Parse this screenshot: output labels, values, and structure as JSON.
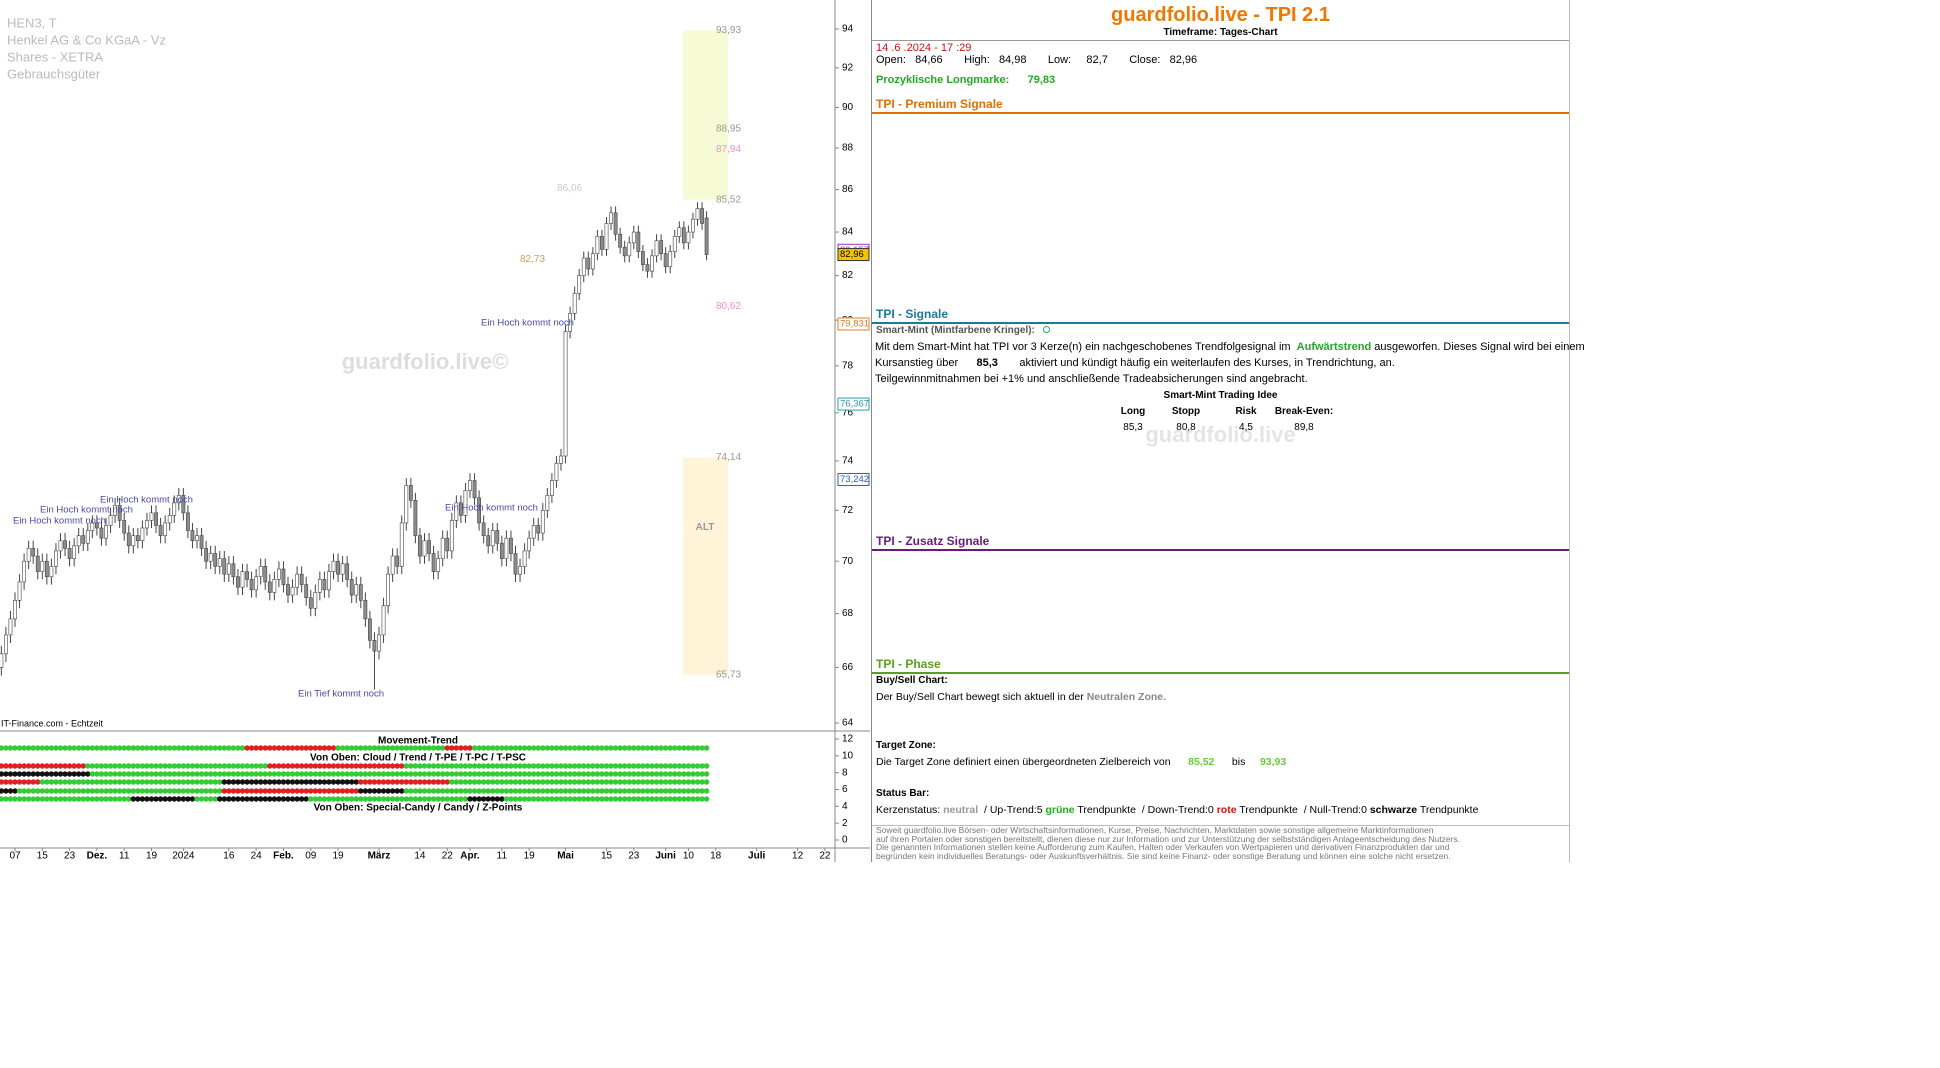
{
  "chart_data": [
    {
      "type": "candlestick",
      "title_lines": [
        "HEN3, T",
        "Henkel AG & Co KGaA - Vz",
        "Shares - XETRA",
        "Gebrauchsgüter"
      ],
      "watermark": "guardfolio.live©",
      "source": "IT-Finance.com - Echtzeit",
      "annotations": [
        "Ein Hoch kommt noch",
        "Ein Hoch kommt noch",
        "Ein Hoch kommt noch",
        "Ein Hoch kommt noch",
        "Ein Hoch kommt noch",
        "Ein Tief kommt noch"
      ],
      "zone_label": "ALT",
      "open": [
        65.6,
        66.0,
        66.5,
        67.2,
        67.8,
        68.5,
        69.2,
        70.0,
        70.5,
        70.2,
        69.6,
        70.0,
        69.4,
        69.8,
        70.4,
        70.8,
        70.5,
        70.1,
        70.6,
        71.0,
        70.7,
        71.2,
        71.5,
        71.3,
        70.9,
        71.4,
        71.8,
        72.2,
        71.6,
        71.1,
        70.6,
        71.0,
        70.8,
        71.3,
        71.6,
        71.9,
        71.4,
        71.0,
        71.5,
        71.8,
        72.3,
        72.6,
        71.9,
        71.2,
        70.8,
        71.0,
        70.5,
        70.0,
        70.3,
        69.8,
        70.1,
        69.5,
        69.9,
        69.4,
        69.0,
        69.6,
        69.3,
        68.9,
        69.4,
        69.8,
        69.2,
        68.8,
        69.3,
        69.7,
        69.1,
        68.7,
        69.0,
        69.5,
        69.1,
        68.6,
        68.2,
        68.8,
        69.3,
        68.9,
        69.6,
        70.0,
        69.5,
        69.9,
        69.3,
        68.7,
        69.1,
        68.5,
        67.8,
        67.0,
        66.6,
        67.2,
        68.3,
        69.5,
        70.2,
        69.8,
        71.5,
        73.0,
        72.4,
        71.0,
        70.2,
        70.8,
        70.3,
        69.6,
        70.1,
        70.9,
        70.4,
        71.6,
        72.3,
        71.8,
        72.8,
        73.2,
        72.5,
        71.5,
        71.0,
        70.6,
        71.2,
        70.7,
        70.1,
        70.9,
        70.3,
        69.5,
        69.8,
        70.4,
        70.9,
        71.4,
        71.1,
        72.0,
        72.6,
        73.2,
        73.9,
        74.2,
        79.5,
        80.3,
        81.2,
        82.0,
        82.8,
        82.3,
        83.0,
        83.8,
        83.2,
        84.4,
        84.9,
        83.9,
        83.3,
        82.9,
        83.5,
        84.0,
        83.1,
        82.5,
        82.2,
        82.9,
        83.6,
        83.0,
        82.4,
        83.1,
        83.8,
        84.2,
        83.5,
        84.0,
        84.6,
        85.1,
        84.66
      ],
      "high": [
        66.3,
        66.8,
        67.5,
        68.1,
        68.8,
        69.5,
        70.3,
        70.8,
        70.8,
        70.5,
        70.3,
        70.3,
        70.1,
        70.7,
        71.1,
        71.1,
        70.8,
        70.9,
        71.3,
        71.3,
        71.5,
        71.8,
        71.8,
        71.6,
        71.7,
        72.1,
        72.5,
        72.5,
        71.9,
        71.4,
        71.3,
        71.3,
        71.6,
        71.9,
        72.2,
        72.2,
        71.7,
        71.8,
        72.1,
        72.6,
        72.9,
        72.9,
        72.2,
        71.5,
        71.3,
        71.3,
        70.8,
        70.6,
        70.6,
        70.4,
        70.4,
        70.2,
        70.2,
        69.7,
        69.9,
        69.9,
        69.6,
        69.7,
        70.1,
        70.1,
        69.5,
        69.6,
        70.0,
        70.0,
        69.4,
        69.3,
        69.8,
        69.8,
        69.4,
        68.9,
        69.1,
        69.6,
        69.6,
        69.9,
        70.3,
        70.3,
        70.2,
        70.2,
        69.6,
        69.4,
        69.4,
        68.8,
        68.1,
        67.3,
        67.5,
        68.6,
        69.8,
        70.5,
        70.5,
        71.8,
        73.3,
        73.3,
        72.7,
        71.3,
        71.1,
        71.1,
        70.6,
        70.4,
        71.2,
        71.2,
        71.9,
        72.6,
        72.6,
        73.1,
        73.5,
        73.5,
        72.8,
        71.8,
        71.3,
        71.5,
        71.5,
        71.0,
        71.2,
        71.2,
        70.6,
        70.1,
        70.7,
        71.2,
        71.7,
        71.7,
        72.3,
        72.9,
        73.5,
        74.2,
        74.5,
        79.8,
        80.6,
        81.5,
        82.3,
        83.1,
        83.1,
        83.3,
        84.1,
        84.1,
        84.7,
        85.2,
        85.2,
        84.2,
        83.6,
        83.8,
        84.3,
        84.3,
        83.4,
        82.8,
        83.2,
        83.9,
        83.9,
        83.3,
        83.4,
        84.1,
        84.5,
        84.5,
        84.3,
        84.9,
        85.4,
        85.4,
        84.98
      ],
      "low": [
        65.3,
        65.7,
        66.2,
        66.9,
        67.5,
        68.2,
        68.9,
        69.7,
        69.9,
        69.3,
        69.3,
        69.1,
        69.1,
        69.5,
        70.1,
        70.2,
        69.8,
        69.8,
        70.3,
        70.4,
        70.4,
        70.9,
        71.0,
        70.6,
        70.6,
        71.1,
        71.5,
        71.3,
        70.8,
        70.3,
        70.3,
        70.5,
        70.5,
        71.0,
        71.3,
        71.1,
        70.7,
        70.7,
        71.2,
        71.5,
        72.0,
        71.6,
        70.9,
        70.5,
        70.5,
        70.2,
        69.7,
        69.7,
        69.5,
        69.5,
        69.2,
        69.2,
        69.1,
        68.7,
        68.7,
        69.0,
        68.6,
        68.6,
        69.1,
        68.9,
        68.5,
        68.5,
        69.0,
        68.8,
        68.4,
        68.4,
        68.7,
        68.8,
        68.3,
        67.9,
        67.9,
        68.5,
        68.6,
        68.6,
        69.3,
        69.2,
        69.2,
        69.0,
        68.4,
        68.4,
        68.2,
        67.5,
        66.7,
        65.2,
        66.3,
        66.9,
        68.0,
        69.2,
        69.5,
        69.5,
        71.2,
        72.1,
        70.7,
        69.9,
        69.9,
        70.0,
        69.3,
        69.3,
        69.8,
        70.1,
        70.1,
        71.3,
        71.5,
        71.5,
        72.5,
        72.2,
        71.2,
        70.7,
        70.3,
        70.3,
        70.4,
        69.8,
        69.8,
        70.0,
        69.2,
        69.2,
        69.5,
        70.1,
        70.6,
        70.8,
        70.8,
        71.7,
        72.3,
        72.9,
        73.6,
        73.9,
        79.2,
        80.0,
        80.9,
        81.7,
        82.0,
        82.0,
        82.7,
        82.9,
        82.9,
        84.1,
        83.6,
        83.0,
        82.6,
        82.6,
        83.2,
        82.8,
        82.2,
        81.9,
        81.9,
        82.6,
        82.7,
        82.1,
        82.1,
        82.8,
        83.5,
        83.2,
        83.2,
        83.7,
        84.3,
        84.1,
        82.7
      ],
      "close": [
        66.0,
        66.5,
        67.2,
        67.8,
        68.5,
        69.2,
        70.0,
        70.5,
        70.2,
        69.6,
        70.0,
        69.4,
        69.8,
        70.4,
        70.8,
        70.5,
        70.1,
        70.6,
        71.0,
        70.7,
        71.2,
        71.5,
        71.3,
        70.9,
        71.4,
        71.8,
        72.2,
        71.6,
        71.1,
        70.6,
        71.0,
        70.8,
        71.3,
        71.6,
        71.9,
        71.4,
        71.0,
        71.5,
        71.8,
        72.3,
        72.6,
        71.9,
        71.2,
        70.8,
        71.0,
        70.5,
        70.0,
        70.3,
        69.8,
        70.1,
        69.5,
        69.9,
        69.4,
        69.0,
        69.6,
        69.3,
        68.9,
        69.4,
        69.8,
        69.2,
        68.8,
        69.3,
        69.7,
        69.1,
        68.7,
        69.0,
        69.5,
        69.1,
        68.6,
        68.2,
        68.8,
        69.3,
        68.9,
        69.6,
        70.0,
        69.5,
        69.9,
        69.3,
        68.7,
        69.1,
        68.5,
        67.8,
        67.0,
        66.6,
        67.2,
        68.3,
        69.5,
        70.2,
        69.8,
        71.5,
        73.0,
        72.4,
        71.0,
        70.2,
        70.8,
        70.3,
        69.6,
        70.1,
        70.9,
        70.4,
        71.6,
        72.3,
        71.8,
        72.8,
        73.2,
        72.5,
        71.5,
        71.0,
        70.6,
        71.2,
        70.7,
        70.1,
        70.9,
        70.3,
        69.5,
        69.8,
        70.4,
        70.9,
        71.4,
        71.1,
        72.0,
        72.6,
        73.2,
        73.9,
        74.2,
        79.5,
        80.3,
        81.2,
        82.0,
        82.8,
        82.3,
        83.0,
        83.8,
        83.2,
        84.4,
        84.9,
        83.9,
        83.3,
        82.9,
        83.5,
        84.0,
        83.1,
        82.5,
        82.2,
        82.9,
        83.6,
        83.0,
        82.4,
        83.1,
        83.8,
        84.2,
        83.5,
        84.0,
        84.6,
        85.1,
        84.4,
        82.96
      ],
      "up_color": "#ffffff",
      "down_color": "#8c8c8c",
      "log_scale": true,
      "ylim": [
        64,
        94
      ],
      "yticks": [
        64,
        66,
        68,
        70,
        72,
        74,
        76,
        78,
        80,
        82,
        84,
        86,
        88,
        90,
        92,
        94
      ],
      "xticks": [
        {
          "value": 4,
          "label": "07"
        },
        {
          "value": 10,
          "label": "15"
        },
        {
          "value": 16,
          "label": "23"
        },
        {
          "value": 22,
          "label": "Dez."
        },
        {
          "value": 28,
          "label": "11"
        },
        {
          "value": 34,
          "label": "19"
        },
        {
          "value": 41,
          "label": "2024"
        },
        {
          "value": 51,
          "label": "16"
        },
        {
          "value": 57,
          "label": "24"
        },
        {
          "value": 63,
          "label": "Feb."
        },
        {
          "value": 69,
          "label": "09"
        },
        {
          "value": 75,
          "label": "19"
        },
        {
          "value": 84,
          "label": "März"
        },
        {
          "value": 93,
          "label": "14"
        },
        {
          "value": 99,
          "label": "22"
        },
        {
          "value": 104,
          "label": "Apr."
        },
        {
          "value": 111,
          "label": "11"
        },
        {
          "value": 117,
          "label": "19"
        },
        {
          "value": 125,
          "label": "Mai"
        },
        {
          "value": 134,
          "label": "15"
        },
        {
          "value": 140,
          "label": "23"
        },
        {
          "value": 147,
          "label": "Juni"
        },
        {
          "value": 152,
          "label": "10"
        },
        {
          "value": 158,
          "label": "18"
        },
        {
          "value": 167,
          "label": "Juli"
        },
        {
          "value": 176,
          "label": "12"
        },
        {
          "value": 182,
          "label": "22"
        }
      ],
      "levels": [
        {
          "value": 93.93,
          "label": "93,93",
          "color": "#999999"
        },
        {
          "value": 88.95,
          "label": "88,95",
          "color": "#999999"
        },
        {
          "value": 87.94,
          "label": "87,94",
          "color": "#f090d0"
        },
        {
          "value": 85.52,
          "label": "85,52",
          "color": "#999999"
        },
        {
          "value": 80.62,
          "label": "80,62",
          "color": "#f090d0"
        },
        {
          "value": 74.14,
          "label": "74,14",
          "color": "#999999"
        },
        {
          "value": 65.73,
          "label": "65,73",
          "color": "#999999"
        }
      ],
      "markers": [
        {
          "value": 86.06,
          "label": "86,06",
          "color": "#cccccc"
        },
        {
          "value": 82.73,
          "label": "82,73",
          "color": "#c8a060"
        }
      ],
      "axis_tags": [
        {
          "value": 83.157,
          "label": "83,157",
          "color": "#9b30c0",
          "fill": "#ffffff"
        },
        {
          "value": 82.96,
          "label": "82,96",
          "color": "#333333",
          "fill": "#f5c400"
        },
        {
          "value": 79.831,
          "label": "79,831",
          "color": "#e08020",
          "fill": "#ffffff"
        },
        {
          "value": 76.367,
          "label": "76,367",
          "color": "#2a9ab0",
          "fill": "#ffffff"
        },
        {
          "value": 73.242,
          "label": "73,242",
          "color": "#2a60c0",
          "fill": "#ffffff"
        }
      ]
    },
    {
      "type": "dot-matrix",
      "title": "Movement-Trend",
      "labels": [
        "Von Oben: Cloud / Trend / T-PE / T-PC / T-PSC",
        "Von Oben: Special-Candy / Candy / Z-Points"
      ],
      "ylim": [
        0,
        12
      ],
      "yticks": [
        0,
        2,
        4,
        6,
        8,
        10,
        12
      ],
      "rows": [
        [
          [
            "#33cc33",
            55
          ],
          [
            "#e02020",
            20
          ],
          [
            "#33cc33",
            24
          ],
          [
            "#e02020",
            6
          ],
          [
            "#33cc33",
            52
          ]
        ],
        [
          [
            "#e02020",
            20
          ],
          [
            "#33cc33",
            40
          ],
          [
            "#e02020",
            30
          ],
          [
            "#33cc33",
            67
          ]
        ],
        [
          [
            "#111111",
            21
          ],
          [
            "#33cc33",
            136
          ]
        ],
        [
          [
            "#e02020",
            10
          ],
          [
            "#33cc33",
            40
          ],
          [
            "#111111",
            30
          ],
          [
            "#e02020",
            20
          ],
          [
            "#33cc33",
            57
          ]
        ],
        [
          [
            "#111111",
            5
          ],
          [
            "#33cc33",
            45
          ],
          [
            "#e02020",
            30
          ],
          [
            "#111111",
            10
          ],
          [
            "#33cc33",
            67
          ]
        ],
        [
          [
            "#33cc33",
            30
          ],
          [
            "#111111",
            14
          ],
          [
            "#33cc33",
            5
          ],
          [
            "#111111",
            20
          ],
          [
            "#33cc33",
            35
          ],
          [
            "#111111",
            8
          ],
          [
            "#33cc33",
            45
          ]
        ]
      ]
    }
  ],
  "panel": {
    "title": "guardfolio.live - TPI 2.1",
    "timeframe": "Timeframe: Tages-Chart",
    "quote": {
      "datetime": "14 .6 .2024 - 17 :29",
      "open_label": "Open:",
      "open": "84,66",
      "high_label": "High:",
      "high": "84,98",
      "low_label": "Low:",
      "low": "82,7",
      "close_label": "Close:",
      "close": "82,96",
      "longmarke_label": "Prozyklische Longmarke:",
      "longmarke": "79,83"
    },
    "sections": [
      "TPI - Premium Signale",
      "TPI - Signale",
      "TPI - Zusatz Signale",
      "TPI - Phase"
    ],
    "signale": {
      "heading": "Smart-Mint (Mintfarbene Kringel):",
      "text1": "Mit dem Smart-Mint hat TPI vor 3  Kerze(n) ein nachgeschobenes Trendfolgesignal im",
      "trend": "Aufwärtstrend",
      "text2": "ausgeworfen. Dieses Signal wird bei einem",
      "text3": "Kursanstieg über",
      "level": "85,3",
      "text4": "aktiviert und kündigt häufig ein weiterlaufen des Kurses, in Trendrichtung, an.",
      "text5": "Teilgewinnmitnahmen bei +1% und anschließende Tradeabsicherungen sind angebracht.",
      "idea_title": "Smart-Mint Trading Idee",
      "idea_headers": [
        "Long",
        "Stopp",
        "Risk",
        "Break-Even:"
      ],
      "idea_values": [
        "85,3",
        "80,8",
        "4,5",
        "89,8"
      ],
      "watermark": "guardfolio.live"
    },
    "phase": {
      "buysell_heading": "Buy/Sell Chart:",
      "buysell_text": "Der Buy/Sell Chart bewegt sich aktuell in der",
      "buysell_zone": "Neutralen Zone.",
      "target_heading": "Target Zone:",
      "target_text": "Die Target Zone definiert einen übergeordneten Zielbereich von",
      "target_from": "85,52",
      "target_bis": "bis",
      "target_to": "93,93",
      "status_heading": "Status Bar:",
      "status_label": "Kerzenstatus:",
      "status_state": "neutral",
      "up_trend": "/ Up-Trend:5",
      "up_word": "grüne",
      "points1": "Trendpunkte",
      "down_trend": "/ Down-Trend:0",
      "down_word": "rote",
      "points2": "Trendpunkte",
      "null_trend": "/ Null-Trend:0",
      "null_word": "schwarze",
      "points3": "Trendpunkte"
    },
    "disclaimer": [
      "Soweit guardfolio.live Börsen- oder Wirtschaftsinformationen, Kurse, Preise, Nachrichten, Marktdaten sowie sonstige allgemeine Marktinformationen",
      "auf ihren Portalen oder sonstigen bereitstellt, dienen diese nur zur Information und zur Unterstützung der selbstständigen Anlageentscheidung des Nutzers.",
      "Die genannten Informationen stellen keine Aufforderung zum Kaufen, Halten oder Verkaufen von Wertpapieren und derivativen Finanzprodukten dar und",
      "begründen kein individuelles Beratungs- oder Auskunftsverhältnis. Sie sind keine Finanz- oder sonstige Beratung und können eine solche nicht ersetzen."
    ]
  }
}
